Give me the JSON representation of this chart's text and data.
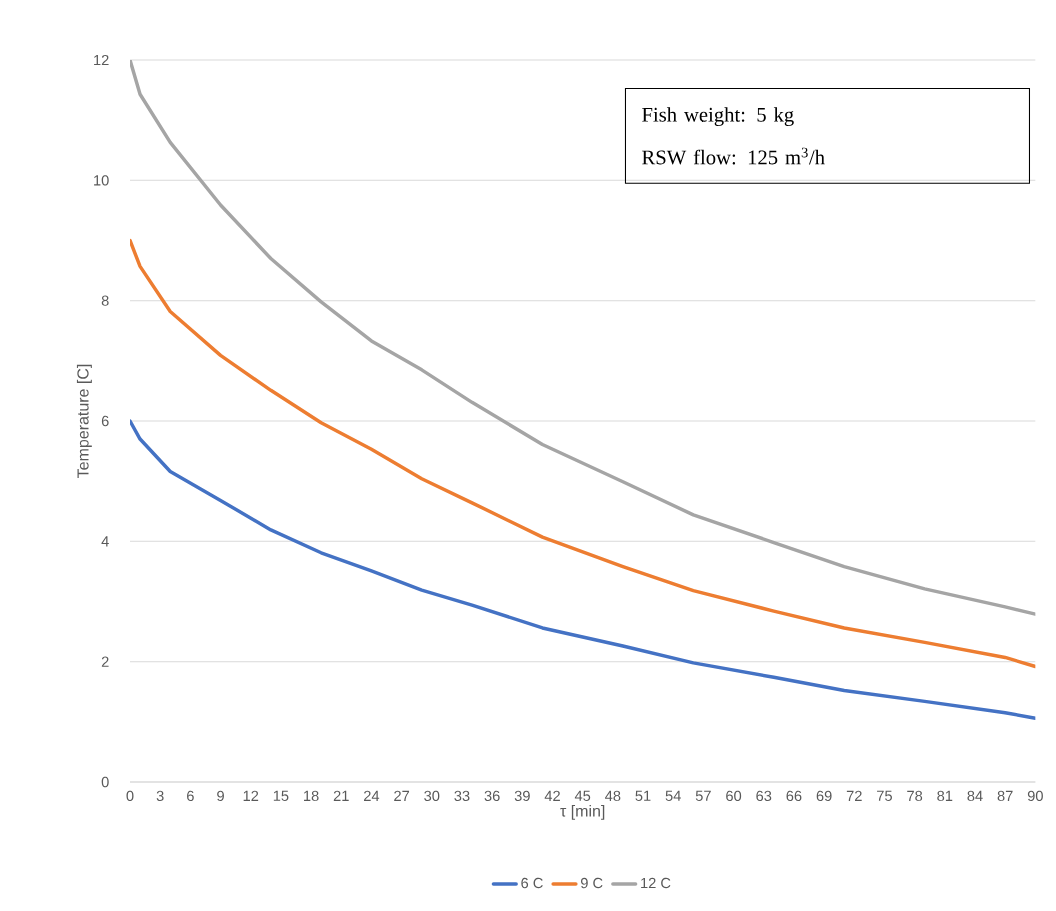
{
  "chart_data": {
    "type": "line",
    "x": [
      0,
      1,
      4,
      9,
      14,
      19,
      24,
      29,
      34,
      41,
      49,
      56,
      64,
      71,
      79,
      87,
      90
    ],
    "series": [
      {
        "name": "6 C",
        "color": "#4472c4",
        "values": [
          6.0,
          5.7,
          5.16,
          4.68,
          4.19,
          3.81,
          3.51,
          3.19,
          2.94,
          2.56,
          2.26,
          1.98,
          1.74,
          1.52,
          1.34,
          1.15,
          1.06
        ]
      },
      {
        "name": "9 C",
        "color": "#ed7d31",
        "values": [
          9.0,
          8.57,
          7.82,
          7.09,
          6.51,
          5.97,
          5.53,
          5.04,
          4.64,
          4.07,
          3.58,
          3.18,
          2.84,
          2.56,
          2.32,
          2.07,
          1.92
        ]
      },
      {
        "name": "12 C",
        "color": "#a5a5a5",
        "values": [
          12.0,
          11.43,
          10.63,
          9.59,
          8.7,
          7.98,
          7.33,
          6.85,
          6.31,
          5.61,
          4.99,
          4.44,
          3.98,
          3.58,
          3.21,
          2.91,
          2.79
        ]
      }
    ],
    "xlabel": "τ [min]",
    "ylabel": "Temperature [C]",
    "xlim": [
      0,
      90
    ],
    "xticks": [
      0,
      3,
      6,
      9,
      12,
      15,
      18,
      21,
      24,
      27,
      30,
      33,
      36,
      39,
      42,
      45,
      48,
      51,
      54,
      57,
      60,
      63,
      66,
      69,
      72,
      75,
      78,
      81,
      84,
      87,
      90
    ],
    "ylim": [
      0,
      12
    ],
    "yticks": [
      0,
      2,
      4,
      6,
      8,
      10,
      12
    ],
    "annotations": [
      "Fish weight: 5 kg",
      "RSW flow: 125 m$^{3}$/h"
    ],
    "grid": "y",
    "legend": "bottom",
    "marker": "none"
  }
}
